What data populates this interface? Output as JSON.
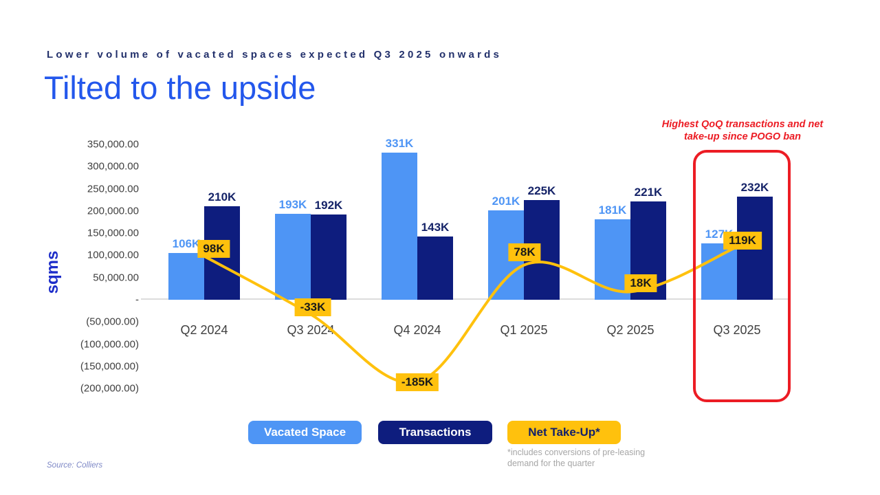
{
  "slide": {
    "kicker": "Lower volume of vacated spaces expected Q3 2025 onwards",
    "title": "Tilted to the upside",
    "source": "Source: Colliers",
    "annotation_line1": "Highest QoQ transactions and net",
    "annotation_line2": "take-up since POGO ban"
  },
  "legend": {
    "footnote": "*includes conversions of pre-leasing demand for the quarter"
  },
  "colors": {
    "vacated_space": "#4E95F5",
    "transactions": "#0E1D7E",
    "net_take_up": "#FFC10D",
    "highlight_red": "#EC1C24",
    "title_blue": "#2357EC",
    "kicker_navy": "#22306B",
    "axis_text": "#3F3F3F"
  },
  "chart_data": {
    "type": "bar",
    "subtype": "grouped-bars-with-line-overlay",
    "title": "Tilted to the upside",
    "xlabel": "",
    "ylabel": "sqms",
    "grid": false,
    "legend_position": "bottom",
    "ylim": [
      -200000,
      350000
    ],
    "categories": [
      "Q2 2024",
      "Q3 2024",
      "Q4 2024",
      "Q1 2025",
      "Q2 2025",
      "Q3 2025"
    ],
    "series": [
      {
        "name": "Vacated Space",
        "type": "bar",
        "color": "#4E95F5",
        "values": [
          106000,
          193000,
          331000,
          201000,
          181000,
          127000
        ],
        "labels": [
          "106K",
          "193K",
          "331K",
          "201K",
          "181K",
          "127K"
        ]
      },
      {
        "name": "Transactions",
        "type": "bar",
        "color": "#0E1D7E",
        "values": [
          210000,
          192000,
          143000,
          225000,
          221000,
          232000
        ],
        "labels": [
          "210K",
          "192K",
          "143K",
          "225K",
          "221K",
          "232K"
        ]
      },
      {
        "name": "Net Take-Up*",
        "type": "line",
        "color": "#FFC10D",
        "values": [
          98000,
          -33000,
          -185000,
          78000,
          18000,
          119000
        ],
        "labels": [
          "98K",
          "-33K",
          "-185K",
          "78K",
          "18K",
          "119K"
        ]
      }
    ],
    "y_tick_labels": [
      "350,000.00",
      "300,000.00",
      "250,000.00",
      "200,000.00",
      "150,000.00",
      "100,000.00",
      "50,000.00",
      "-",
      "(50,000.00)",
      "(100,000.00)",
      "(150,000.00)",
      "(200,000.00)"
    ],
    "y_tick_values": [
      350000,
      300000,
      250000,
      200000,
      150000,
      100000,
      50000,
      0,
      -50000,
      -100000,
      -150000,
      -200000
    ],
    "highlight": {
      "category": "Q3 2025",
      "annotation": "Highest QoQ transactions and net take-up since POGO ban"
    }
  }
}
